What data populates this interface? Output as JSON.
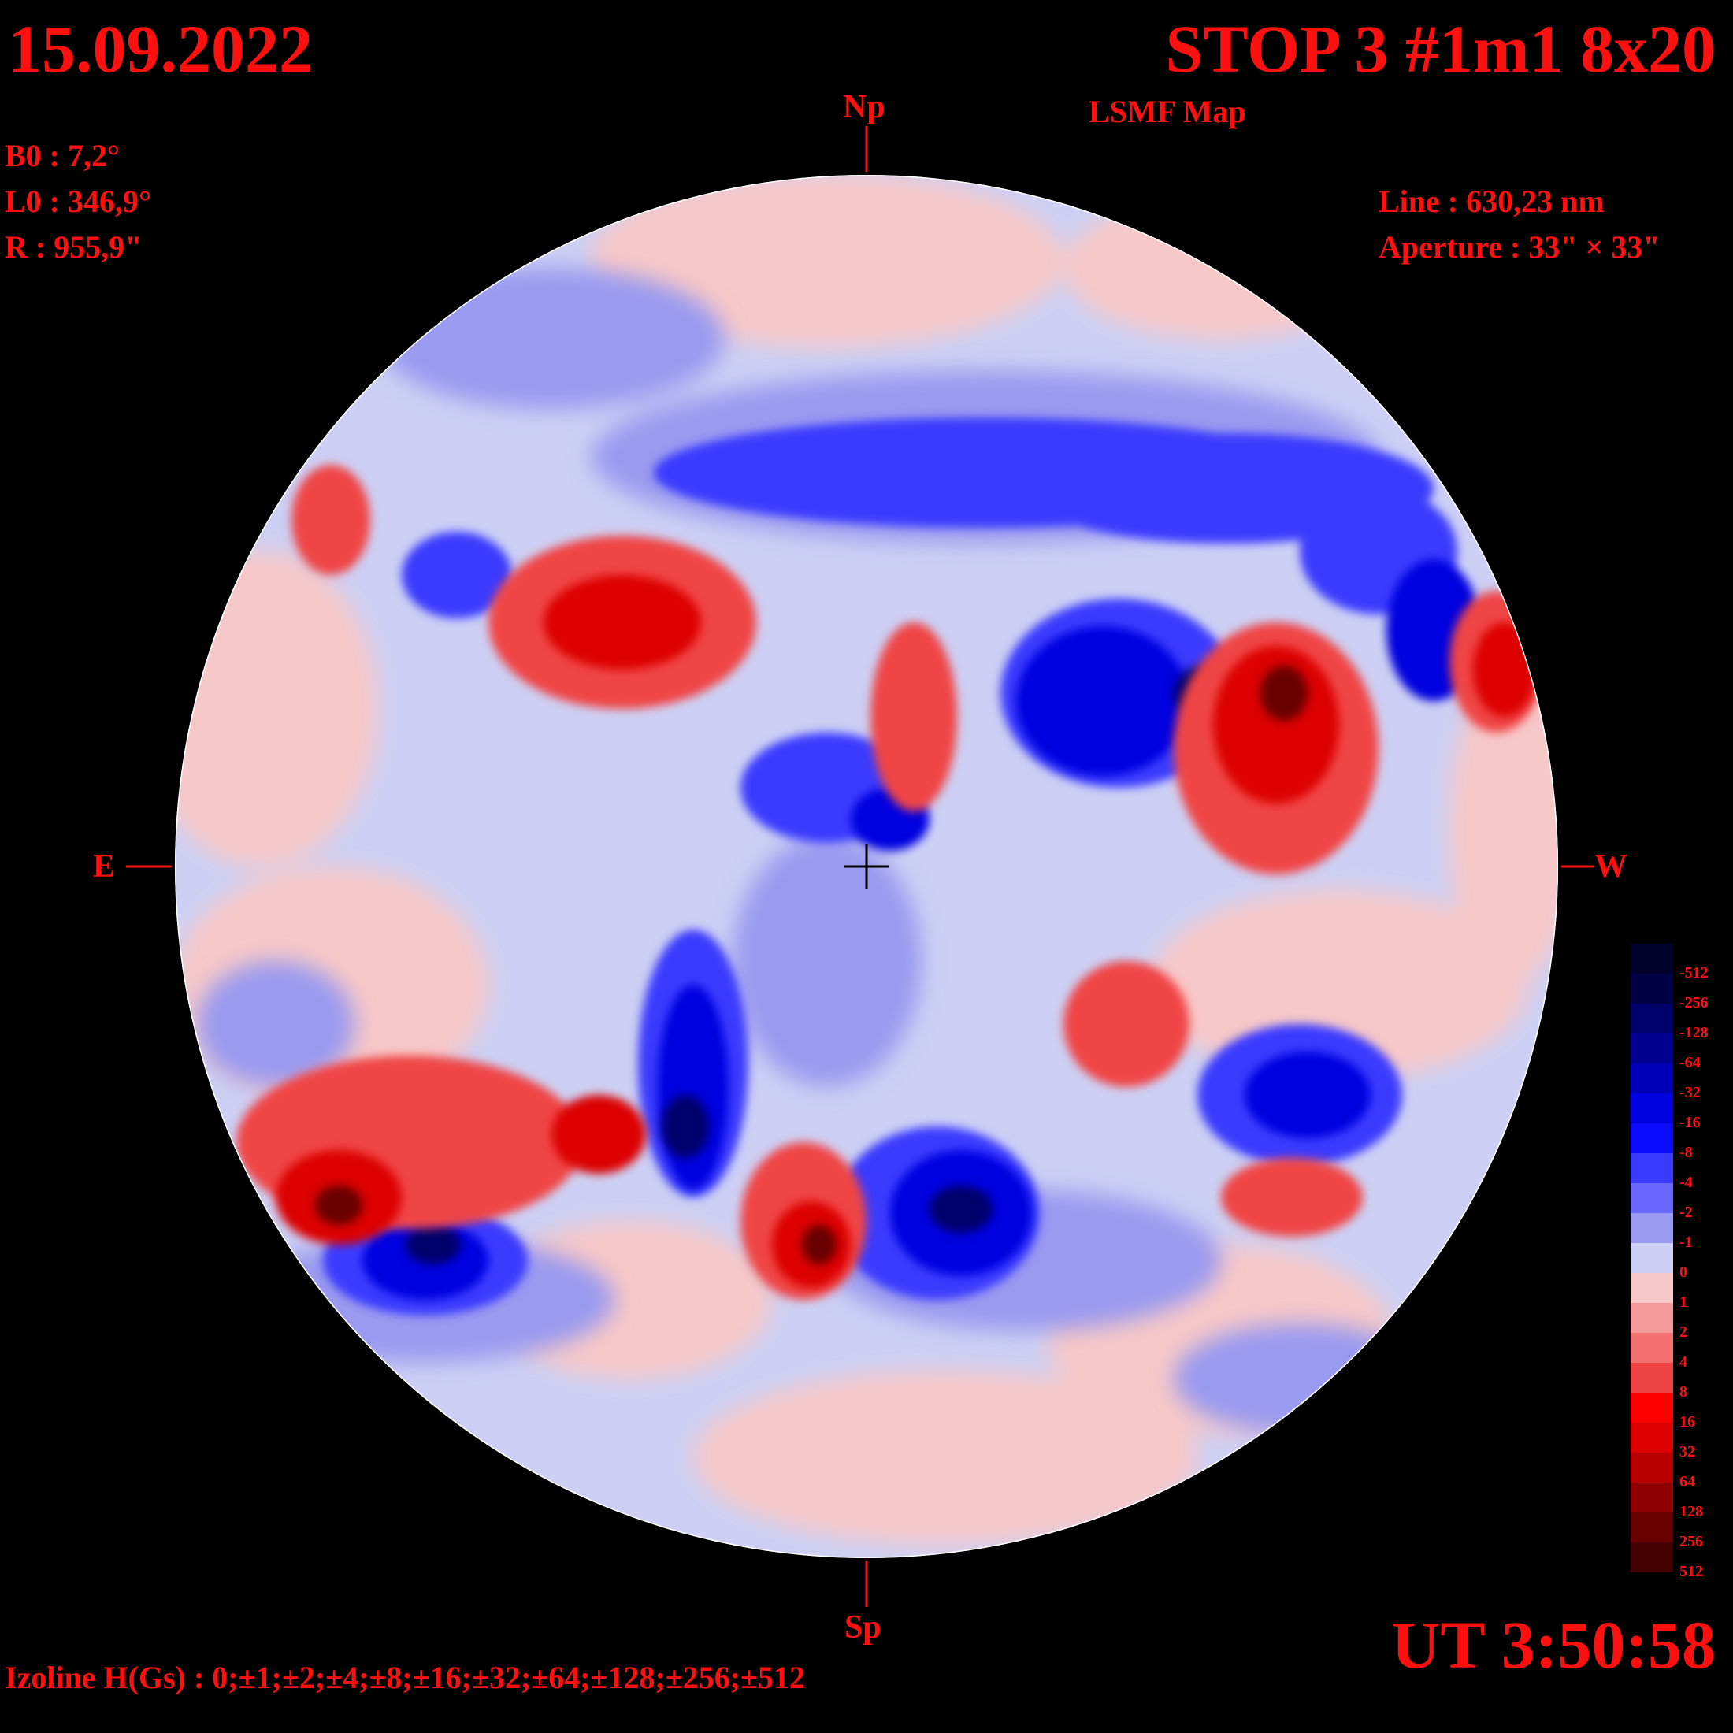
{
  "header": {
    "date": "15.09.2022",
    "title": "STOP 3 #1m1 8x20",
    "subtitle": "LSMF  Map",
    "ut": "UT 3:50:58"
  },
  "params": [
    "B0 : 7,2°",
    "L0 : 346,9°",
    "R  : 955,9\""
  ],
  "instrument": [
    "Line :  630,23 nm",
    "Aperture : 33\" × 33\""
  ],
  "compass": {
    "north": "Np",
    "south": "Sp",
    "east": "E",
    "west": "W"
  },
  "isolines": "Izoline H(Gs) : 0;±1;±2;±4;±8;±16;±32;±64;±128;±256;±512",
  "legend": {
    "labels": [
      "-512",
      "-256",
      "-128",
      "-64",
      "-32",
      "-16",
      "-8",
      "-4",
      "-2",
      "-1",
      "0",
      "1",
      "2",
      "4",
      "8",
      "16",
      "32",
      "64",
      "128",
      "256",
      "512"
    ],
    "colors": [
      "#00002a",
      "#000046",
      "#00006a",
      "#000090",
      "#0000b8",
      "#0000e0",
      "#0a0aff",
      "#3a3aff",
      "#6868ff",
      "#9a9af0",
      "#cdd0f4",
      "#f7c8c8",
      "#f59a9a",
      "#f27070",
      "#f04444",
      "#ff0000",
      "#dd0000",
      "#b80000",
      "#900000",
      "#680000",
      "#420000"
    ]
  },
  "colors": {
    "text": "#ff1010",
    "positive": "#ff0000",
    "negative": "#0000ff"
  }
}
